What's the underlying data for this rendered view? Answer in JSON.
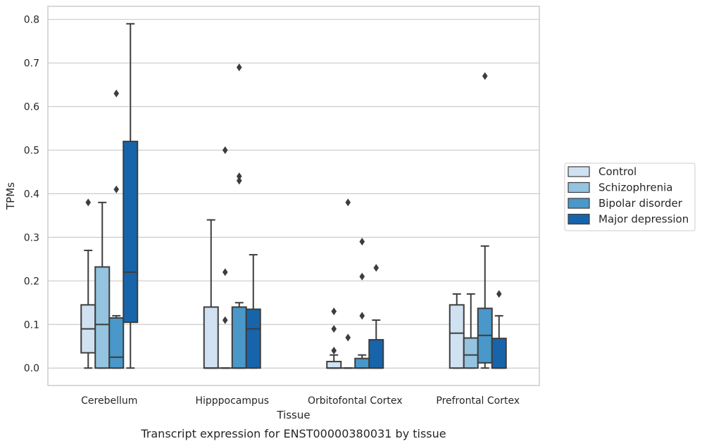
{
  "caption": "Transcript expression for ENST00000380031 by tissue",
  "chart_data": {
    "type": "boxplot",
    "xlabel": "Tissue",
    "ylabel": "TPMs",
    "ylim": [
      -0.04,
      0.83
    ],
    "yticks": [
      0.0,
      0.1,
      0.2,
      0.3,
      0.4,
      0.5,
      0.6,
      0.7,
      0.8
    ],
    "ytick_labels": [
      "0.0",
      "0.1",
      "0.2",
      "0.3",
      "0.4",
      "0.5",
      "0.6",
      "0.7",
      "0.8"
    ],
    "grid": true,
    "legend_position": "right",
    "categories": [
      "Cerebellum",
      "Hipppocampus",
      "Orbitofontal Cortex",
      "Prefrontal Cortex"
    ],
    "series": [
      {
        "name": "Control",
        "color": "#d0e1f2",
        "boxes": [
          {
            "whislo": 0.0,
            "q1": 0.035,
            "med": 0.09,
            "q3": 0.145,
            "whishi": 0.27,
            "fliers": [
              0.38
            ]
          },
          {
            "whislo": 0.0,
            "q1": 0.0,
            "med": 0.0,
            "q3": 0.14,
            "whishi": 0.34,
            "fliers": []
          },
          {
            "whislo": 0.0,
            "q1": 0.0,
            "med": 0.0,
            "q3": 0.015,
            "whishi": 0.03,
            "fliers": [
              0.04,
              0.09,
              0.13
            ]
          },
          {
            "whislo": 0.0,
            "q1": 0.0,
            "med": 0.08,
            "q3": 0.145,
            "whishi": 0.17,
            "fliers": []
          }
        ]
      },
      {
        "name": "Schizophrenia",
        "color": "#94c4df",
        "boxes": [
          {
            "whislo": 0.0,
            "q1": 0.0,
            "med": 0.1,
            "q3": 0.232,
            "whishi": 0.38,
            "fliers": []
          },
          {
            "whislo": 0.0,
            "q1": 0.0,
            "med": 0.0,
            "q3": 0.0,
            "whishi": 0.0,
            "fliers": [
              0.11,
              0.22,
              0.5
            ]
          },
          {
            "whislo": 0.0,
            "q1": 0.0,
            "med": 0.0,
            "q3": 0.0,
            "whishi": 0.0,
            "fliers": [
              0.07,
              0.38
            ]
          },
          {
            "whislo": 0.0,
            "q1": 0.0,
            "med": 0.03,
            "q3": 0.069,
            "whishi": 0.17,
            "fliers": []
          }
        ]
      },
      {
        "name": "Bipolar disorder",
        "color": "#4a98c9",
        "boxes": [
          {
            "whislo": 0.0,
            "q1": 0.0,
            "med": 0.025,
            "q3": 0.115,
            "whishi": 0.12,
            "fliers": [
              0.41,
              0.63
            ]
          },
          {
            "whislo": 0.0,
            "q1": 0.0,
            "med": 0.0,
            "q3": 0.14,
            "whishi": 0.15,
            "fliers": [
              0.43,
              0.44,
              0.69
            ]
          },
          {
            "whislo": 0.0,
            "q1": 0.0,
            "med": 0.0,
            "q3": 0.022,
            "whishi": 0.03,
            "fliers": [
              0.12,
              0.21,
              0.29
            ]
          },
          {
            "whislo": 0.0,
            "q1": 0.012,
            "med": 0.075,
            "q3": 0.137,
            "whishi": 0.28,
            "fliers": [
              0.67
            ]
          }
        ]
      },
      {
        "name": "Major depression",
        "color": "#1764ab",
        "boxes": [
          {
            "whislo": 0.0,
            "q1": 0.105,
            "med": 0.22,
            "q3": 0.52,
            "whishi": 0.79,
            "fliers": []
          },
          {
            "whislo": 0.0,
            "q1": 0.0,
            "med": 0.09,
            "q3": 0.135,
            "whishi": 0.26,
            "fliers": []
          },
          {
            "whislo": 0.0,
            "q1": 0.0,
            "med": 0.0,
            "q3": 0.065,
            "whishi": 0.11,
            "fliers": [
              0.23
            ]
          },
          {
            "whislo": 0.0,
            "q1": 0.0,
            "med": 0.0,
            "q3": 0.068,
            "whishi": 0.12,
            "fliers": [
              0.17
            ]
          }
        ]
      }
    ]
  }
}
